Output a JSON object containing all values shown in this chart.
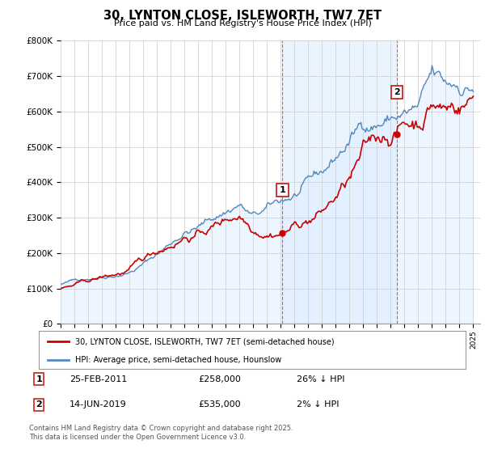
{
  "title": "30, LYNTON CLOSE, ISLEWORTH, TW7 7ET",
  "subtitle": "Price paid vs. HM Land Registry's House Price Index (HPI)",
  "legend_line1": "30, LYNTON CLOSE, ISLEWORTH, TW7 7ET (semi-detached house)",
  "legend_line2": "HPI: Average price, semi-detached house, Hounslow",
  "footer": "Contains HM Land Registry data © Crown copyright and database right 2025.\nThis data is licensed under the Open Government Licence v3.0.",
  "annotation1_label": "1",
  "annotation1_date": "25-FEB-2011",
  "annotation1_price": "£258,000",
  "annotation1_hpi": "26% ↓ HPI",
  "annotation2_label": "2",
  "annotation2_date": "14-JUN-2019",
  "annotation2_price": "£535,000",
  "annotation2_hpi": "2% ↓ HPI",
  "red_color": "#cc0000",
  "blue_color": "#5588bb",
  "blue_fill": "#ddeeff",
  "vline_color": "#ee4444",
  "ylim": [
    0,
    800000
  ],
  "yticks": [
    0,
    100000,
    200000,
    300000,
    400000,
    500000,
    600000,
    700000,
    800000
  ],
  "sale1_x": 2011.12,
  "sale1_y": 258000,
  "sale2_x": 2019.45,
  "sale2_y": 535000,
  "xmin": 1995,
  "xmax": 2025.5
}
